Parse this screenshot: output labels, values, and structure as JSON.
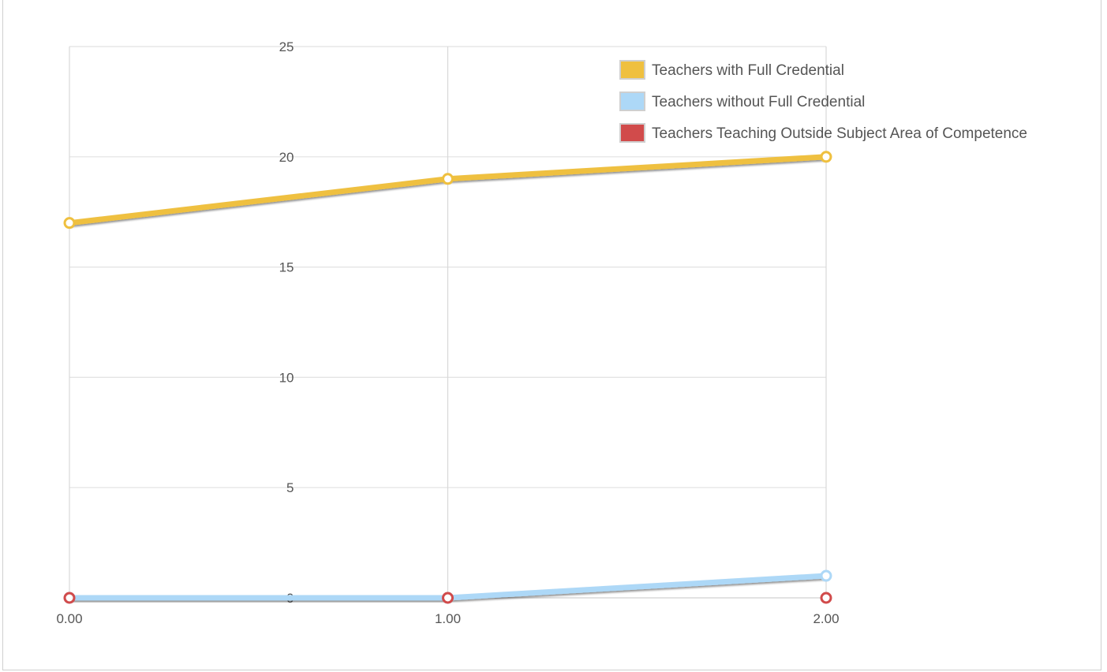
{
  "chart_data": {
    "type": "line",
    "x": [
      0,
      1,
      2
    ],
    "x_tick_labels": [
      "0.00",
      "1.00",
      "2.00"
    ],
    "y_tick_labels": [
      "0",
      "5",
      "10",
      "15",
      "20",
      "25"
    ],
    "xlim": [
      0,
      2
    ],
    "ylim": [
      0,
      25
    ],
    "grid": true,
    "legend_position": "top-right",
    "series": [
      {
        "name": "Teachers with Full Credential",
        "values": [
          17,
          19,
          20
        ],
        "color": "#EFC03F"
      },
      {
        "name": "Teachers without Full Credential",
        "values": [
          0,
          0,
          1
        ],
        "color": "#ADD8F7"
      },
      {
        "name": "Teachers Teaching Outside Subject Area of Competence",
        "values": [
          0,
          0,
          0
        ],
        "color": "#D14B4B"
      }
    ]
  }
}
